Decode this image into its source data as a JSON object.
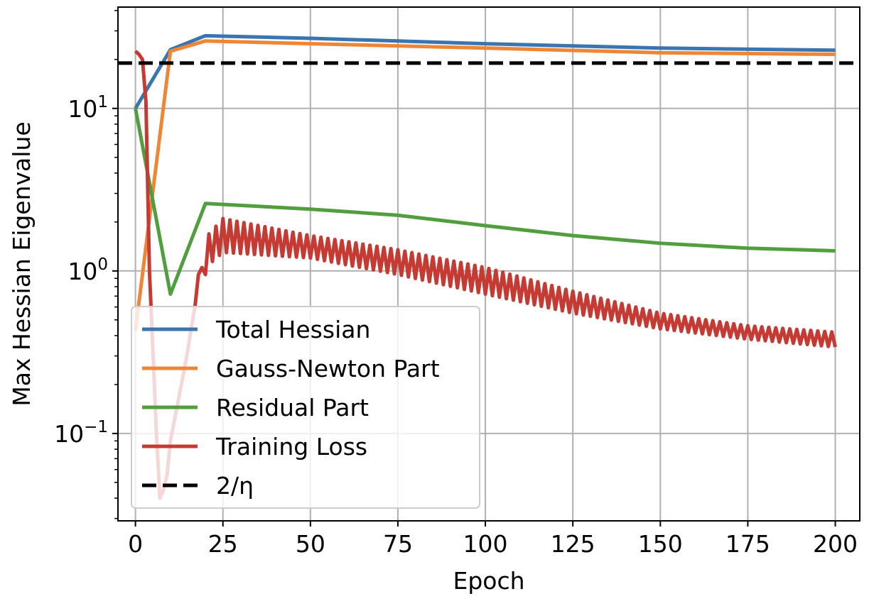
{
  "chart_data": {
    "type": "line",
    "title": "",
    "xlabel": "Epoch",
    "ylabel": "Max Hessian Eigenvalue",
    "xlim": [
      -5,
      207
    ],
    "ylim": [
      0.029,
      42
    ],
    "yscale": "log",
    "grid": true,
    "legend_position": "lower-left",
    "x_ticks": [
      0,
      25,
      50,
      75,
      100,
      125,
      150,
      175,
      200
    ],
    "x_tick_labels": [
      "0",
      "25",
      "50",
      "75",
      "100",
      "125",
      "150",
      "175",
      "200"
    ],
    "y_ticks": [
      {
        "value": 0.1,
        "base": "10",
        "exp": "−1"
      },
      {
        "value": 1,
        "base": "10",
        "exp": "0"
      },
      {
        "value": 10,
        "base": "10",
        "exp": "1"
      }
    ],
    "series": [
      {
        "name": "Total Hessian",
        "color": "#3a75af",
        "style": "solid",
        "points": [
          [
            0,
            10
          ],
          [
            10,
            23
          ],
          [
            20,
            28
          ],
          [
            50,
            27
          ],
          [
            100,
            25
          ],
          [
            150,
            23.5
          ],
          [
            200,
            22.8
          ]
        ]
      },
      {
        "name": "Gauss-Newton Part",
        "color": "#ef8636",
        "style": "solid",
        "points": [
          [
            0,
            0.43
          ],
          [
            10,
            22.5
          ],
          [
            20,
            26
          ],
          [
            50,
            25
          ],
          [
            100,
            23.5
          ],
          [
            150,
            22
          ],
          [
            200,
            21.5
          ]
        ]
      },
      {
        "name": "Residual Part",
        "color": "#519e3e",
        "style": "solid",
        "points": [
          [
            0,
            10
          ],
          [
            10,
            0.72
          ],
          [
            20,
            2.6
          ],
          [
            50,
            2.4
          ],
          [
            75,
            2.2
          ],
          [
            100,
            1.9
          ],
          [
            125,
            1.65
          ],
          [
            150,
            1.48
          ],
          [
            175,
            1.38
          ],
          [
            200,
            1.33
          ]
        ]
      },
      {
        "name": "Training Loss",
        "color": "#c53a32",
        "style": "solid",
        "early_points": [
          [
            0,
            22.5
          ],
          [
            1,
            21.5
          ],
          [
            2,
            20
          ],
          [
            3,
            11
          ],
          [
            4,
            1.0
          ],
          [
            5,
            0.32
          ],
          [
            6,
            0.1
          ],
          [
            7,
            0.04
          ],
          [
            8,
            0.045
          ],
          [
            9,
            0.055
          ],
          [
            10,
            0.09
          ],
          [
            12,
            0.15
          ],
          [
            14,
            0.25
          ],
          [
            15,
            0.33
          ],
          [
            16,
            0.45
          ],
          [
            17,
            0.6
          ],
          [
            18,
            0.95
          ],
          [
            19,
            1.05
          ],
          [
            20,
            0.95
          ]
        ],
        "oscillation": {
          "start": 20,
          "end": 200,
          "period": 2,
          "upper": [
            [
              20,
              1.6
            ],
            [
              25,
              2.1
            ],
            [
              50,
              1.65
            ],
            [
              75,
              1.35
            ],
            [
              100,
              1.05
            ],
            [
              125,
              0.75
            ],
            [
              150,
              0.55
            ],
            [
              175,
              0.46
            ],
            [
              200,
              0.42
            ]
          ],
          "lower": [
            [
              20,
              1.05
            ],
            [
              25,
              1.3
            ],
            [
              50,
              1.2
            ],
            [
              75,
              0.95
            ],
            [
              100,
              0.72
            ],
            [
              125,
              0.55
            ],
            [
              150,
              0.44
            ],
            [
              175,
              0.38
            ],
            [
              200,
              0.34
            ]
          ]
        }
      },
      {
        "name": "2/η",
        "color": "#000000",
        "style": "dashed",
        "points": [
          [
            -5,
            19
          ],
          [
            207,
            19
          ]
        ]
      }
    ]
  }
}
